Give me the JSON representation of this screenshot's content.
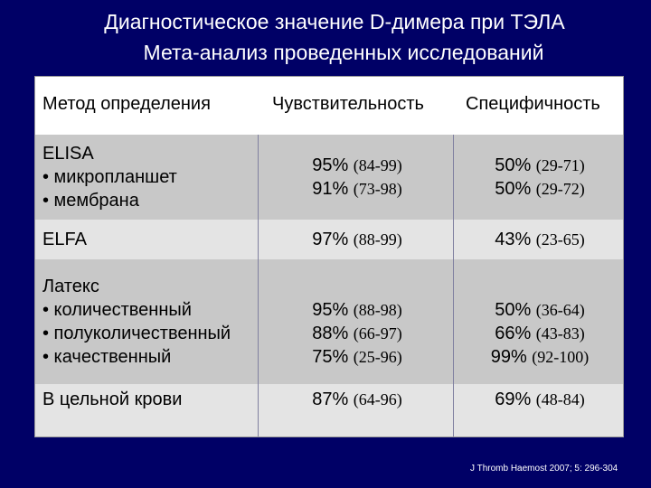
{
  "title": {
    "line1": "Диагностическое значение D-димера при ТЭЛА",
    "line2": "Мета-анализ проведенных исследований"
  },
  "table": {
    "headers": [
      "Метод определения",
      "Чувствительность",
      "Специфичность"
    ],
    "rows": [
      {
        "method": [
          "ELISA",
          "• микропланшет",
          "• мембрана"
        ],
        "sensitivity": [
          {
            "pct": "95%",
            "range": "(84-99)"
          },
          {
            "pct": "91%",
            "range": "(73-98)"
          }
        ],
        "specificity": [
          {
            "pct": "50%",
            "range": "(29-71)"
          },
          {
            "pct": "50%",
            "range": "(29-72)"
          }
        ]
      },
      {
        "method": [
          "ELFA"
        ],
        "sensitivity": [
          {
            "pct": "97%",
            "range": "(88-99)"
          }
        ],
        "specificity": [
          {
            "pct": "43%",
            "range": "(23-65)"
          }
        ]
      },
      {
        "method": [
          "Латекс",
          "• количественный",
          "• полуколичественный",
          "• качественный"
        ],
        "sensitivity": [
          {
            "pct": "95%",
            "range": "(88-98)"
          },
          {
            "pct": "88%",
            "range": "(66-97)"
          },
          {
            "pct": "75%",
            "range": "(25-96)"
          }
        ],
        "specificity": [
          {
            "pct": "50%",
            "range": "(36-64)"
          },
          {
            "pct": "66%",
            "range": "(43-83)"
          },
          {
            "pct": "99%",
            "range": "(92-100)"
          }
        ]
      },
      {
        "method": [
          "В цельной крови"
        ],
        "sensitivity": [
          {
            "pct": "87%",
            "range": "(64-96)"
          }
        ],
        "specificity": [
          {
            "pct": "69%",
            "range": "(48-84)"
          }
        ]
      }
    ]
  },
  "reference": "J Thromb Haemost 2007; 5: 296-304"
}
